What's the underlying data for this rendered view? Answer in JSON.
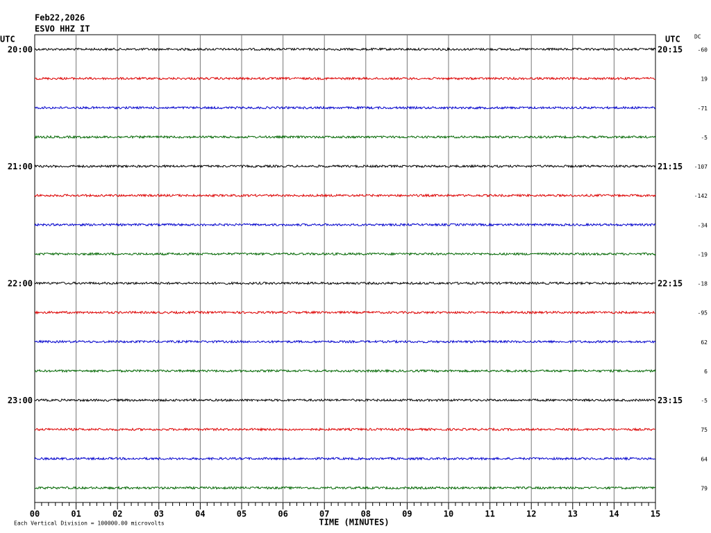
{
  "header": {
    "date": "Feb22,2026",
    "station": "ESVO HHZ IT"
  },
  "left_axis": {
    "title": "UTC",
    "times": [
      "20:00",
      "21:00",
      "22:00",
      "23:00"
    ]
  },
  "right_axis": {
    "title": "UTC",
    "times": [
      "20:15",
      "21:15",
      "22:15",
      "23:15"
    ]
  },
  "dc": {
    "title": "DC",
    "values": [
      "-60",
      "19",
      "-71",
      "-5",
      "-107",
      "-142",
      "-34",
      "-19",
      "-18",
      "-95",
      "62",
      "6",
      "-5",
      "75",
      "64",
      "79"
    ]
  },
  "x_axis": {
    "ticks": [
      "00",
      "01",
      "02",
      "03",
      "04",
      "05",
      "06",
      "07",
      "08",
      "09",
      "10",
      "11",
      "12",
      "13",
      "14",
      "15"
    ],
    "title": "TIME (MINUTES)"
  },
  "footer": "Each Vertical Division = 100000.00 microvolts"
}
